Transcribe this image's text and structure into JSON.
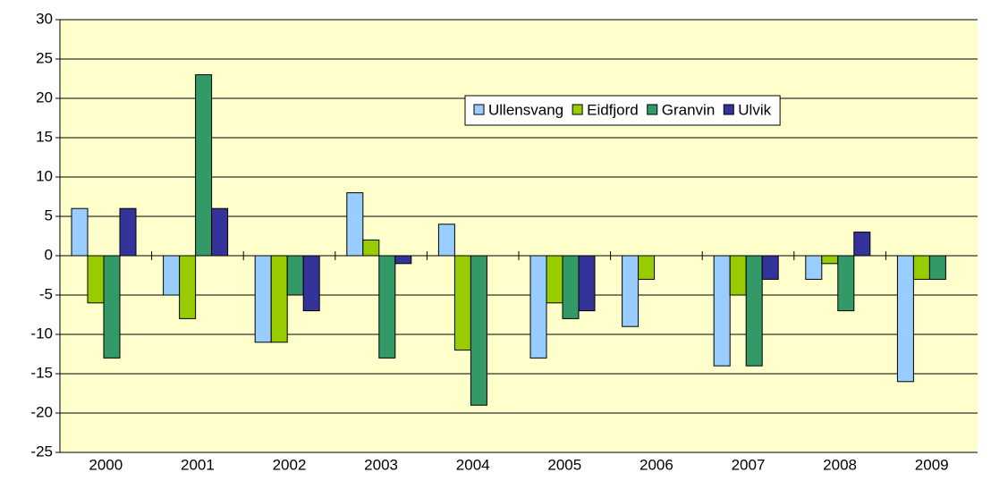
{
  "chart_data": {
    "type": "bar",
    "categories": [
      "2000",
      "2001",
      "2002",
      "2003",
      "2004",
      "2005",
      "2006",
      "2007",
      "2008",
      "2009"
    ],
    "series": [
      {
        "name": "Ullensvang",
        "color": "#99ccff",
        "values": [
          6,
          -5,
          -11,
          8,
          4,
          -13,
          -9,
          -14,
          -3,
          -16
        ]
      },
      {
        "name": "Eidfjord",
        "color": "#99cc00",
        "values": [
          -6,
          -8,
          -11,
          2,
          -12,
          -6,
          -3,
          -5,
          -1,
          -3
        ]
      },
      {
        "name": "Granvin",
        "color": "#339966",
        "values": [
          -13,
          23,
          -5,
          -13,
          -19,
          -8,
          0,
          -14,
          -7,
          -3
        ]
      },
      {
        "name": "Ulvik",
        "color": "#333399",
        "values": [
          6,
          6,
          -7,
          -1,
          0,
          -7,
          0,
          -3,
          3,
          0
        ]
      }
    ],
    "ylim": [
      -25,
      30
    ],
    "yticks": [
      -25,
      -20,
      -15,
      -10,
      -5,
      0,
      5,
      10,
      15,
      20,
      25,
      30
    ],
    "grid": true,
    "background": "#ffffcc",
    "legend": "top-center"
  }
}
